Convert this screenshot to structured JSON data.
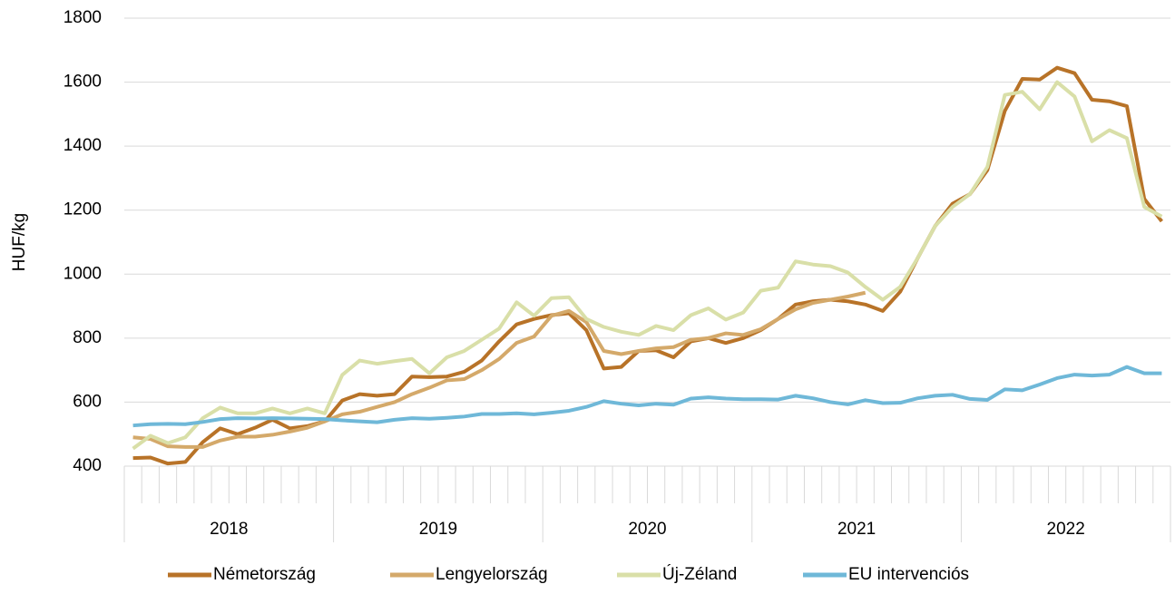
{
  "chart_data": {
    "type": "line",
    "y_label": "HUF/kg",
    "categories": [
      null,
      null,
      null,
      null,
      null,
      null,
      null,
      null,
      null,
      null,
      null,
      null,
      null,
      null,
      null,
      null,
      null,
      null,
      null,
      null,
      null,
      null,
      null,
      null,
      null,
      null,
      null,
      null,
      null,
      null,
      null,
      null,
      null,
      null,
      null,
      null,
      null,
      null,
      null,
      null,
      null,
      null,
      null,
      null,
      null,
      null,
      null,
      null,
      null,
      null,
      null,
      null,
      null,
      null,
      null,
      null,
      null,
      null,
      null,
      null
    ],
    "groups": [
      "2018",
      "2019",
      "2020",
      "2021",
      "2022"
    ],
    "ylim": [
      400,
      1800
    ],
    "yticks": [
      400,
      600,
      800,
      1000,
      1200,
      1400,
      1600,
      1800
    ],
    "grid": true,
    "legend": "bottom",
    "series": [
      {
        "name": "Németország",
        "color": "#b87328",
        "values": [
          425,
          427,
          408,
          413,
          475,
          518,
          500,
          520,
          545,
          518,
          525,
          540,
          605,
          625,
          620,
          625,
          680,
          678,
          680,
          695,
          730,
          790,
          843,
          860,
          872,
          878,
          825,
          705,
          710,
          760,
          762,
          740,
          790,
          800,
          785,
          800,
          825,
          860,
          905,
          915,
          920,
          915,
          905,
          885,
          945,
          1050,
          1150,
          1220,
          1250,
          1325,
          1510,
          1610,
          1608,
          1645,
          1628,
          1545,
          1540,
          1525,
          1235,
          1165
        ]
      },
      {
        "name": "Lengyelország",
        "color": "#d4a96a",
        "values": [
          490,
          485,
          462,
          460,
          460,
          480,
          492,
          492,
          498,
          508,
          520,
          540,
          562,
          570,
          585,
          600,
          625,
          645,
          668,
          672,
          700,
          735,
          785,
          805,
          870,
          885,
          850,
          760,
          750,
          760,
          768,
          772,
          795,
          800,
          815,
          810,
          828,
          860,
          890,
          910,
          920,
          930,
          942,
          null,
          null,
          null,
          null,
          null,
          null,
          null,
          null,
          null,
          null,
          null,
          null,
          null,
          null,
          null,
          null,
          null
        ]
      },
      {
        "name": "Új-Zéland",
        "color": "#d9dfa8",
        "values": [
          455,
          495,
          472,
          490,
          550,
          583,
          565,
          565,
          580,
          565,
          580,
          565,
          685,
          730,
          720,
          728,
          735,
          690,
          740,
          760,
          795,
          830,
          912,
          870,
          925,
          928,
          860,
          835,
          820,
          810,
          838,
          825,
          872,
          893,
          858,
          880,
          948,
          958,
          1040,
          1030,
          1025,
          1005,
          960,
          920,
          960,
          1050,
          1150,
          1210,
          1250,
          1335,
          1560,
          1570,
          1515,
          1600,
          1555,
          1415,
          1450,
          1425,
          1210,
          1180
        ]
      },
      {
        "name": "EU intervenciós",
        "color": "#6fb8d8",
        "values": [
          527,
          531,
          532,
          531,
          538,
          547,
          550,
          549,
          550,
          549,
          548,
          547,
          543,
          540,
          537,
          545,
          550,
          548,
          551,
          555,
          563,
          563,
          565,
          562,
          567,
          573,
          585,
          603,
          595,
          590,
          595,
          592,
          611,
          615,
          611,
          609,
          609,
          608,
          620,
          612,
          600,
          593,
          606,
          597,
          598,
          612,
          620,
          623,
          610,
          607,
          640,
          637,
          655,
          675,
          686,
          683,
          686,
          710,
          690,
          690
        ]
      }
    ]
  }
}
